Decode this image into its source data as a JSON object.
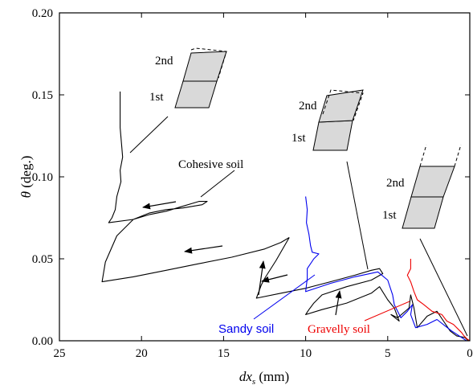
{
  "chart_data": {
    "type": "line",
    "xlabel_main": "dx",
    "xlabel_sub": "s",
    "xlabel_unit": " (mm)",
    "ylabel_main": "θ",
    "ylabel_unit": " (deg.)",
    "xlim": [
      25,
      0
    ],
    "ylim": [
      0,
      0.2
    ],
    "xticks": [
      25,
      20,
      15,
      10,
      5,
      0
    ],
    "yticks": [
      0,
      0.05,
      0.1,
      0.15,
      0.2
    ],
    "xtick_labels": [
      "25",
      "20",
      "15",
      "10",
      "5",
      "0"
    ],
    "ytick_labels": [
      "0.00",
      "0.05",
      "0.10",
      "0.15",
      "0.20"
    ],
    "annotations": {
      "cohesive": "Cohesive soil",
      "sandy": "Sandy soil",
      "gravelly": "Gravelly soil",
      "second": "2nd",
      "first": "1st"
    },
    "colors": {
      "cohesive": "#000000",
      "sandy": "#0000ee",
      "gravelly": "#ee0000"
    },
    "series": [
      {
        "name": "Cohesive soil",
        "color": "#000000",
        "segments": [
          [
            [
              21.3,
              0.152
            ],
            [
              21.3,
              0.13
            ],
            [
              21.2,
              0.118
            ],
            [
              21.15,
              0.112
            ],
            [
              21.3,
              0.104
            ],
            [
              21.25,
              0.097
            ],
            [
              21.5,
              0.088
            ],
            [
              21.6,
              0.08
            ],
            [
              21.8,
              0.075
            ],
            [
              22,
              0.072
            ],
            [
              20.5,
              0.074
            ],
            [
              19.5,
              0.077
            ],
            [
              18.5,
              0.079
            ],
            [
              17.5,
              0.082
            ],
            [
              16.5,
              0.085
            ],
            [
              16.0,
              0.085
            ],
            [
              16.3,
              0.083
            ],
            [
              17.5,
              0.081
            ],
            [
              18.5,
              0.08
            ],
            [
              19.5,
              0.078
            ],
            [
              20.5,
              0.074
            ],
            [
              21.5,
              0.064
            ],
            [
              22.2,
              0.048
            ],
            [
              22.4,
              0.036
            ],
            [
              20.5,
              0.039
            ],
            [
              18.5,
              0.043
            ],
            [
              16.5,
              0.047
            ],
            [
              14.5,
              0.051
            ],
            [
              12.5,
              0.056
            ],
            [
              11.5,
              0.06
            ],
            [
              11.0,
              0.063
            ]
          ],
          [
            [
              11.0,
              0.063
            ],
            [
              11.8,
              0.049
            ],
            [
              12.5,
              0.038
            ],
            [
              12.7,
              0.034
            ],
            [
              13.0,
              0.026
            ],
            [
              11.5,
              0.029
            ],
            [
              10,
              0.032
            ],
            [
              8.5,
              0.036
            ],
            [
              7.0,
              0.04
            ],
            [
              6.0,
              0.043
            ],
            [
              5.5,
              0.044
            ],
            [
              5.3,
              0.041
            ],
            [
              6,
              0.037
            ],
            [
              7.5,
              0.033
            ],
            [
              9,
              0.028
            ],
            [
              9.5,
              0.023
            ],
            [
              9.8,
              0.019
            ],
            [
              10.0,
              0.016
            ],
            [
              9.0,
              0.019
            ],
            [
              7.5,
              0.023
            ],
            [
              6,
              0.029
            ],
            [
              5.5,
              0.033
            ],
            [
              5.0,
              0.025
            ],
            [
              4.6,
              0.02
            ],
            [
              4.3,
              0.012
            ],
            [
              4.8,
              0.016
            ],
            [
              4.4,
              0.014
            ],
            [
              3.7,
              0.02
            ],
            [
              3.6,
              0.028
            ],
            [
              3.4,
              0.02
            ],
            [
              3.2,
              0.008
            ],
            [
              2.6,
              0.015
            ],
            [
              2.0,
              0.018
            ],
            [
              1.6,
              0.012
            ],
            [
              1.2,
              0.006
            ],
            [
              0.8,
              0.003
            ],
            [
              0.3,
              0.002
            ],
            [
              0.1,
              0
            ]
          ]
        ]
      },
      {
        "name": "Sandy soil",
        "color": "#0000ee",
        "segments": [
          [
            [
              10.0,
              0.088
            ],
            [
              9.9,
              0.08
            ],
            [
              9.95,
              0.072
            ],
            [
              9.8,
              0.065
            ],
            [
              9.7,
              0.058
            ],
            [
              9.6,
              0.054
            ],
            [
              9.2,
              0.053
            ],
            [
              9.5,
              0.05
            ],
            [
              9.9,
              0.044
            ],
            [
              9.9,
              0.038
            ],
            [
              10,
              0.03
            ],
            [
              8.5,
              0.035
            ],
            [
              7,
              0.039
            ],
            [
              5.6,
              0.042
            ],
            [
              5.0,
              0.037
            ],
            [
              4.7,
              0.028
            ],
            [
              4.6,
              0.022
            ],
            [
              4.2,
              0.014
            ],
            [
              3.8,
              0.018
            ],
            [
              3.5,
              0.022
            ],
            [
              3.6,
              0.016
            ],
            [
              3.3,
              0.008
            ],
            [
              2.6,
              0.01
            ],
            [
              2.0,
              0.013
            ],
            [
              1.5,
              0.009
            ],
            [
              1.1,
              0.006
            ],
            [
              0.8,
              0.004
            ],
            [
              0.5,
              0.002
            ],
            [
              0.2,
              0
            ]
          ]
        ]
      },
      {
        "name": "Gravelly soil",
        "color": "#ee0000",
        "segments": [
          [
            [
              3.6,
              0.05
            ],
            [
              3.6,
              0.044
            ],
            [
              3.8,
              0.04
            ],
            [
              3.6,
              0.036
            ],
            [
              3.4,
              0.03
            ],
            [
              3.2,
              0.025
            ],
            [
              2.8,
              0.022
            ],
            [
              2.3,
              0.018
            ],
            [
              1.7,
              0.016
            ],
            [
              1.4,
              0.012
            ],
            [
              1.0,
              0.01
            ],
            [
              0.7,
              0.007
            ],
            [
              0.5,
              0.005
            ],
            [
              0.35,
              0.003
            ],
            [
              0.15,
              0.001
            ],
            [
              0,
              0
            ]
          ]
        ]
      }
    ]
  }
}
